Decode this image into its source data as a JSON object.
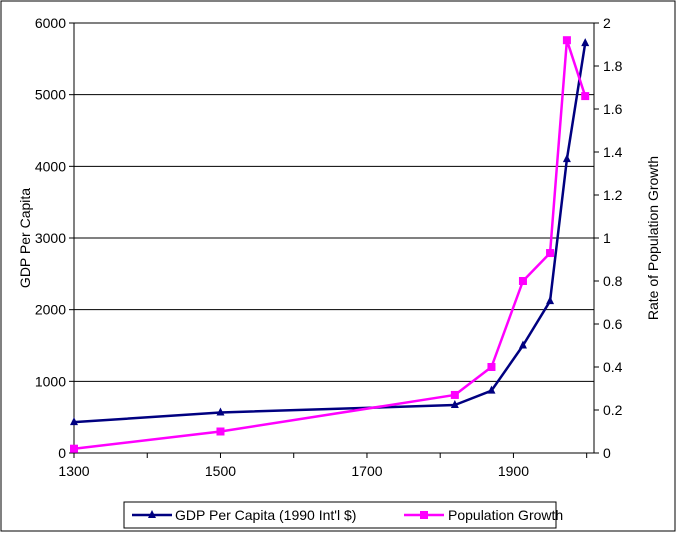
{
  "chart_data": {
    "type": "line",
    "xlabel": "",
    "ylabel_left": "GDP Per Capita",
    "ylabel_right": "Rate of Population Growth",
    "xlim": [
      1300,
      2010
    ],
    "ylim_left": [
      0,
      6000
    ],
    "ylim_right": [
      0,
      2
    ],
    "x_ticks": [
      1300,
      1500,
      1700,
      1900
    ],
    "y_ticks_left": [
      0,
      1000,
      2000,
      3000,
      4000,
      5000,
      6000
    ],
    "y_ticks_right": [
      0,
      0.2,
      0.4,
      0.6,
      0.8,
      1,
      1.2,
      1.4,
      1.6,
      1.8,
      2
    ],
    "grid": "horizontal",
    "legend_position": "bottom",
    "series": [
      {
        "name": "GDP Per Capita (1990 Int'l $)",
        "axis": "left",
        "color": "#000080",
        "marker": "triangle",
        "x": [
          1300,
          1500,
          1820,
          1870,
          1913,
          1950,
          1973,
          1998
        ],
        "values": [
          430,
          565,
          670,
          870,
          1500,
          2120,
          4100,
          5720
        ]
      },
      {
        "name": "Population Growth",
        "axis": "right",
        "color": "#ff00ff",
        "marker": "square",
        "x": [
          1300,
          1500,
          1820,
          1870,
          1913,
          1950,
          1973,
          1998
        ],
        "values": [
          0.02,
          0.1,
          0.27,
          0.4,
          0.8,
          0.93,
          1.92,
          1.66
        ]
      }
    ]
  }
}
